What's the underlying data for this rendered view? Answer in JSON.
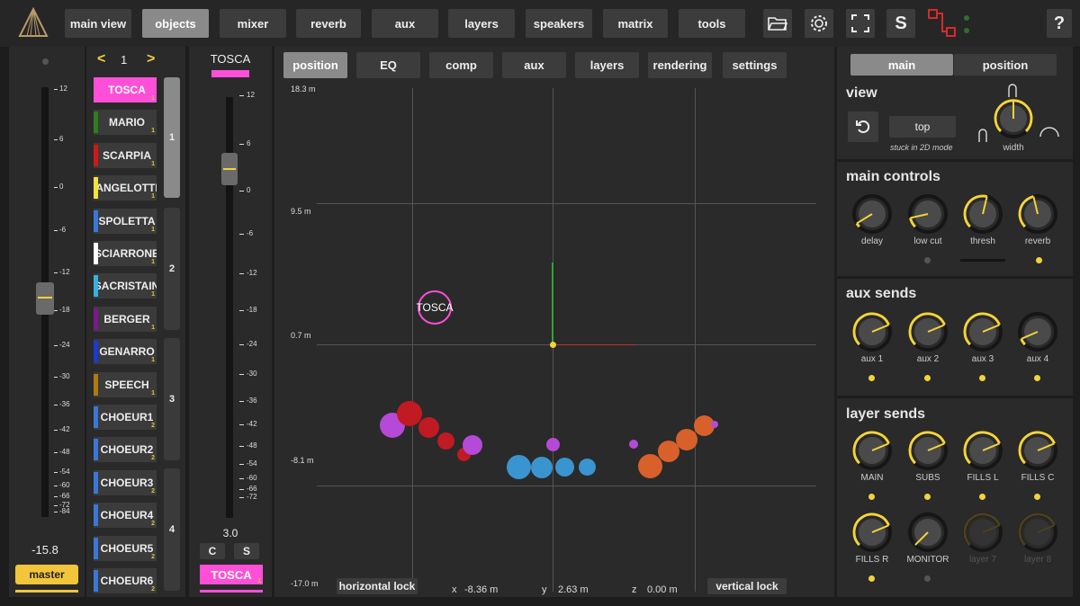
{
  "nav": {
    "items": [
      "main view",
      "objects",
      "mixer",
      "reverb",
      "aux",
      "layers",
      "speakers",
      "matrix",
      "tools"
    ],
    "active": "objects",
    "solo_label": "S",
    "help_label": "?"
  },
  "master": {
    "value": "-15.8",
    "label": "master",
    "ticks": [
      "12",
      "6",
      "0",
      "-6",
      "-12",
      "-18",
      "-24",
      "-30",
      "-36",
      "-42",
      "-48",
      "-54",
      "-60",
      "-66",
      "-72",
      "-84"
    ]
  },
  "objects": {
    "page": "1",
    "prev": "<",
    "next": ">",
    "groups": [
      "1",
      "2",
      "3",
      "4"
    ],
    "list": [
      {
        "name": "TOSCA",
        "num": "1",
        "color": "#ff4fd8"
      },
      {
        "name": "MARIO",
        "num": "1",
        "color": "#2e7d1a"
      },
      {
        "name": "SCARPIA",
        "num": "1",
        "color": "#d01818"
      },
      {
        "name": "ANGELOTTI",
        "num": "1",
        "color": "#f4e23a"
      },
      {
        "name": "SPOLETTA",
        "num": "1",
        "color": "#3a78d8"
      },
      {
        "name": "SCIARRONE",
        "num": "1",
        "color": "#ffffff"
      },
      {
        "name": "SACRISTAIN",
        "num": "1",
        "color": "#33b3e0"
      },
      {
        "name": "BERGER",
        "num": "1",
        "color": "#7a1a8a"
      },
      {
        "name": "GENARRO",
        "num": "1",
        "color": "#1a3ad0"
      },
      {
        "name": "SPEECH",
        "num": "1",
        "color": "#b07a10"
      },
      {
        "name": "CHOEUR1",
        "num": "2",
        "color": "#3a78d8"
      },
      {
        "name": "CHOEUR2",
        "num": "2",
        "color": "#3a78d8"
      },
      {
        "name": "CHOEUR3",
        "num": "2",
        "color": "#3a78d8"
      },
      {
        "name": "CHOEUR4",
        "num": "2",
        "color": "#3a78d8"
      },
      {
        "name": "CHOEUR5",
        "num": "2",
        "color": "#3a78d8"
      },
      {
        "name": "CHOEUR6",
        "num": "2",
        "color": "#3a78d8"
      }
    ]
  },
  "channel": {
    "title": "TOSCA",
    "value": "3.0",
    "c_label": "C",
    "s_label": "S",
    "name": "TOSCA",
    "num": "1",
    "ticks": [
      "12",
      "6",
      "0",
      "-6",
      "-12",
      "-18",
      "-24",
      "-30",
      "-36",
      "-42",
      "-48",
      "-54",
      "-60",
      "-66",
      "-72"
    ]
  },
  "center": {
    "tabs": [
      "position",
      "EQ",
      "comp",
      "aux",
      "layers",
      "rendering",
      "settings"
    ],
    "active_tab": "position",
    "y_labels": [
      "18.3 m",
      "9.5 m",
      "0.7 m",
      "-8.1 m",
      "-17.0 m"
    ],
    "selected_label": "TOSCA",
    "horizontal_lock": "horizontal lock",
    "vertical_lock": "vertical lock",
    "coords": {
      "x_label": "x",
      "x_value": "-8.36 m",
      "y_label": "y",
      "y_value": "2.63 m",
      "z_label": "z",
      "z_value": "0.00 m"
    }
  },
  "right": {
    "tabs": [
      "main",
      "position"
    ],
    "active_tab": "main",
    "view": {
      "title": "view",
      "mode": "top",
      "note": "stuck in 2D mode",
      "width_label": "width"
    },
    "main_controls": {
      "title": "main controls",
      "knobs": [
        "delay",
        "low cut",
        "thresh",
        "reverb"
      ]
    },
    "aux_sends": {
      "title": "aux sends",
      "knobs": [
        "aux 1",
        "aux 2",
        "aux 3",
        "aux 4"
      ]
    },
    "layer_sends": {
      "title": "layer sends",
      "knobs": [
        "MAIN",
        "SUBS",
        "FILLS L",
        "FILLS C",
        "FILLS R",
        "MONITOR",
        "layer 7",
        "layer 8"
      ]
    }
  },
  "colors": {
    "accent": "#f2d33a",
    "selected": "#ff4fd8"
  }
}
